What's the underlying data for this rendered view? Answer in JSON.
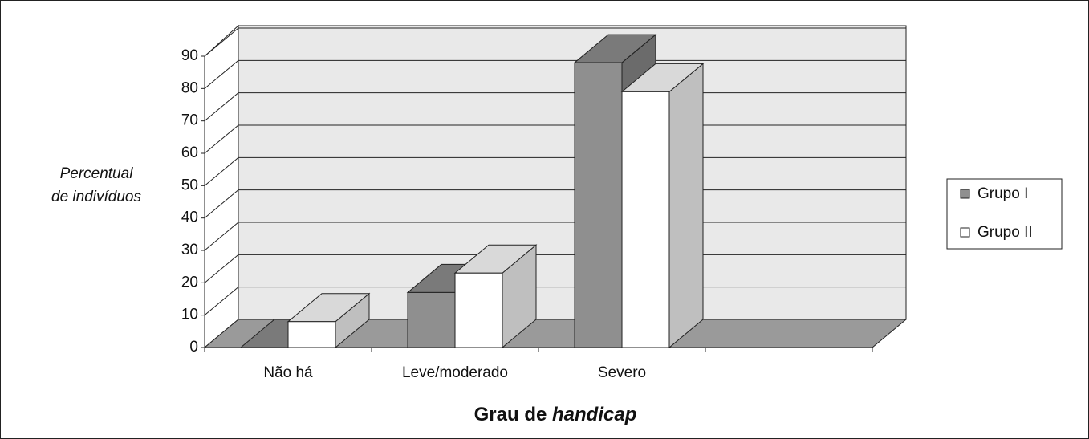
{
  "chart_data": {
    "type": "bar3d",
    "ylabel": [
      "Percentual",
      "de indivíduos"
    ],
    "xlabel": [
      "Grau de ",
      "handicap"
    ],
    "categories": [
      "Não há",
      "Leve/moderado",
      "Severo",
      null
    ],
    "series": [
      {
        "name": "Grupo I",
        "color": "#8f8f8f",
        "values": [
          0,
          17,
          88,
          null
        ]
      },
      {
        "name": "Grupo II",
        "color": "#ffffff",
        "values": [
          8,
          23,
          79,
          null
        ]
      }
    ],
    "ylim": [
      0,
      90
    ],
    "yticks": [
      0,
      10,
      20,
      30,
      40,
      50,
      60,
      70,
      80,
      90
    ],
    "grid": true,
    "legend": "right"
  }
}
